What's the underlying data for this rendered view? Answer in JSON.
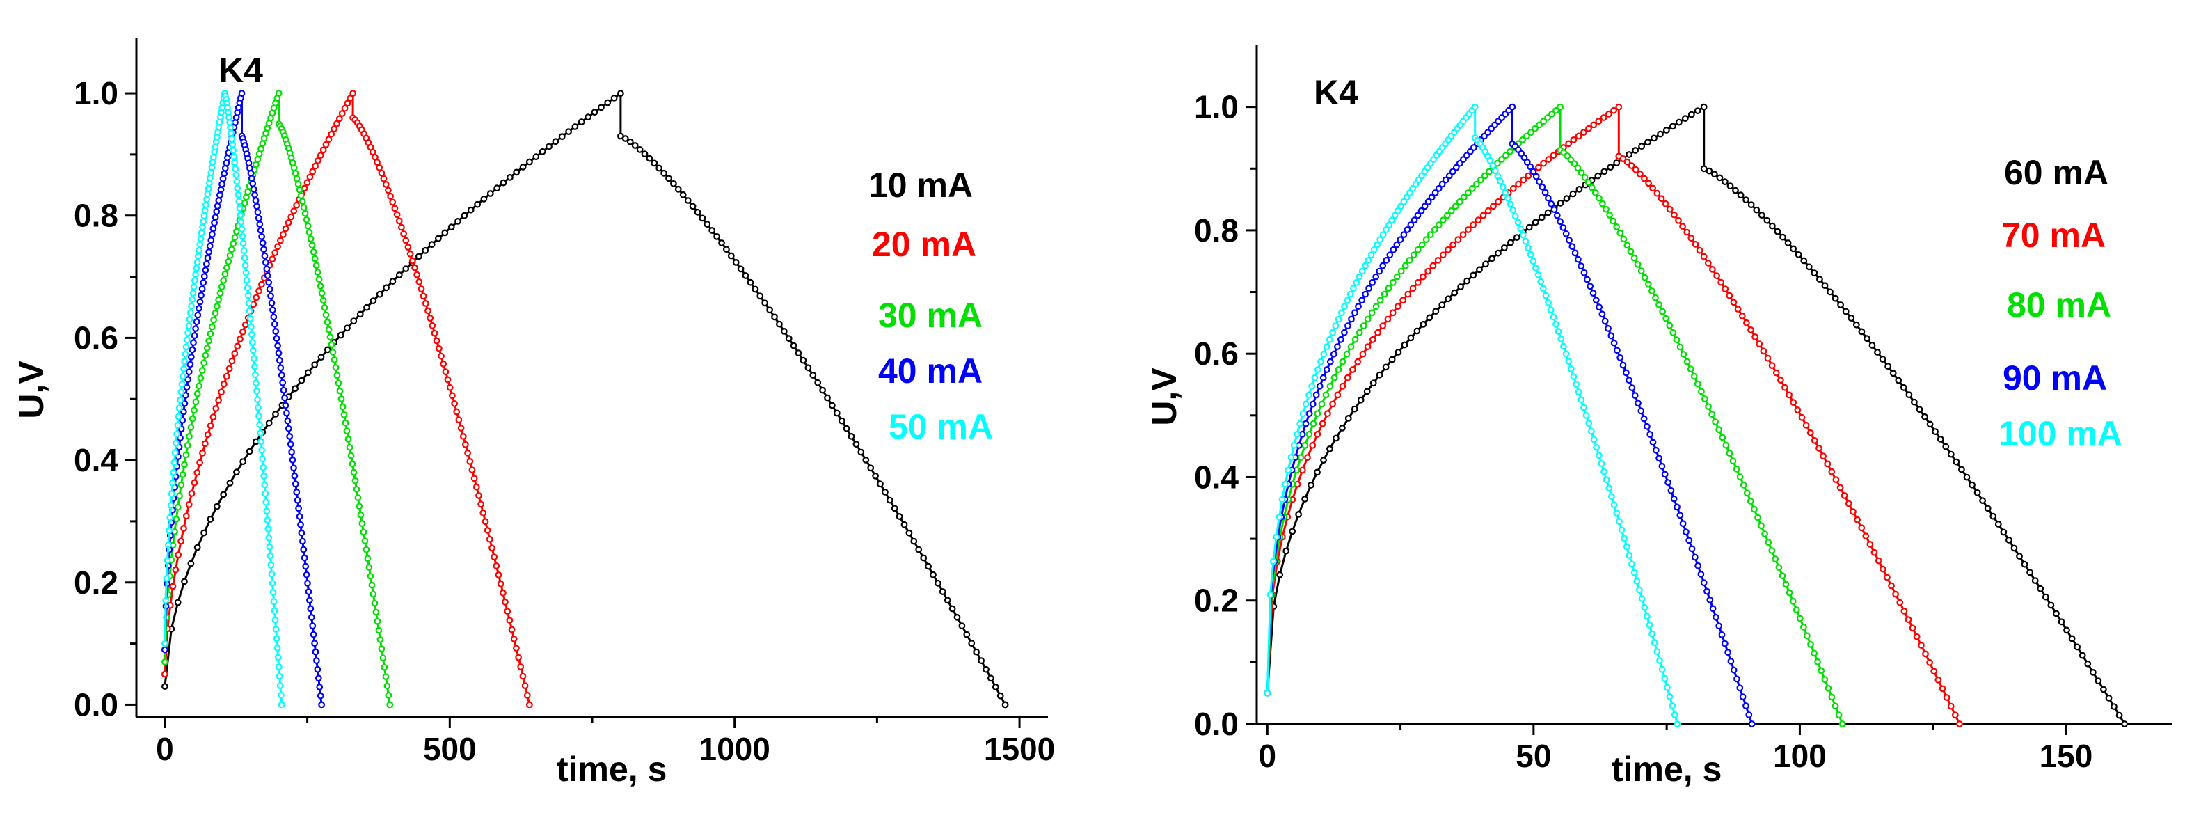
{
  "chart_data": [
    {
      "type": "line",
      "panel_label": "K4",
      "xlabel": "time, s",
      "ylabel": "U,V",
      "xlim": [
        -50,
        1550
      ],
      "ylim": [
        -0.02,
        1.09
      ],
      "xticks": [
        0,
        500,
        1000,
        1500
      ],
      "xtick_labels": [
        "0",
        "500",
        "1000",
        "1500"
      ],
      "yticks": [
        0.0,
        0.2,
        0.4,
        0.6,
        0.8,
        1.0
      ],
      "ytick_labels": [
        "0.0",
        "0.2",
        "0.4",
        "0.6",
        "0.8",
        "1.0"
      ],
      "grid": false,
      "legend_position": "right",
      "series": [
        {
          "name": "10 mA",
          "color": "#000000",
          "v0": 0.03,
          "vdrop": 0.93,
          "charge_end": 800,
          "discharge_end": 1475,
          "charge_exponent": 0.55,
          "discharge_exponent": 1.25
        },
        {
          "name": "20 mA",
          "color": "#ff0000",
          "v0": 0.05,
          "vdrop": 0.96,
          "charge_end": 330,
          "discharge_end": 640,
          "charge_exponent": 0.6,
          "discharge_exponent": 1.3
        },
        {
          "name": "30 mA",
          "color": "#00e000",
          "v0": 0.07,
          "vdrop": 0.95,
          "charge_end": 200,
          "discharge_end": 395,
          "charge_exponent": 0.6,
          "discharge_exponent": 1.3
        },
        {
          "name": "40 mA",
          "color": "#0000ff",
          "v0": 0.09,
          "vdrop": 0.93,
          "charge_end": 135,
          "discharge_end": 275,
          "charge_exponent": 0.6,
          "discharge_exponent": 1.25
        },
        {
          "name": "50 mA",
          "color": "#00ffff",
          "v0": 0.1,
          "vdrop": 1.0,
          "charge_end": 105,
          "discharge_end": 205,
          "charge_exponent": 0.6,
          "discharge_exponent": 1.25
        }
      ]
    },
    {
      "type": "line",
      "panel_label": "K4",
      "xlabel": "time, s",
      "ylabel": "U,V",
      "xlim": [
        -2,
        170
      ],
      "ylim": [
        0,
        1.1
      ],
      "xticks": [
        0,
        50,
        100,
        150
      ],
      "xtick_labels": [
        "0",
        "50",
        "100",
        "150"
      ],
      "yticks": [
        0.0,
        0.2,
        0.4,
        0.6,
        0.8,
        1.0
      ],
      "ytick_labels": [
        "0.0",
        "0.2",
        "0.4",
        "0.6",
        "0.8",
        "1.0"
      ],
      "grid": false,
      "legend_position": "right",
      "series": [
        {
          "name": "60 mA",
          "color": "#000000",
          "v0": 0.05,
          "vdrop": 0.9,
          "charge_end": 82,
          "discharge_end": 161,
          "charge_exponent": 0.45,
          "discharge_exponent": 1.25
        },
        {
          "name": "70 mA",
          "color": "#ff0000",
          "v0": 0.05,
          "vdrop": 0.92,
          "charge_end": 66,
          "discharge_end": 130,
          "charge_exponent": 0.42,
          "discharge_exponent": 1.25
        },
        {
          "name": "80 mA",
          "color": "#00e000",
          "v0": 0.05,
          "vdrop": 0.93,
          "charge_end": 55,
          "discharge_end": 108,
          "charge_exponent": 0.42,
          "discharge_exponent": 1.25
        },
        {
          "name": "90 mA",
          "color": "#0000ff",
          "v0": 0.05,
          "vdrop": 0.94,
          "charge_end": 46,
          "discharge_end": 91,
          "charge_exponent": 0.42,
          "discharge_exponent": 1.25
        },
        {
          "name": "100 mA",
          "color": "#00ffff",
          "v0": 0.05,
          "vdrop": 0.95,
          "charge_end": 39,
          "discharge_end": 77,
          "charge_exponent": 0.42,
          "discharge_exponent": 1.25
        }
      ]
    }
  ]
}
